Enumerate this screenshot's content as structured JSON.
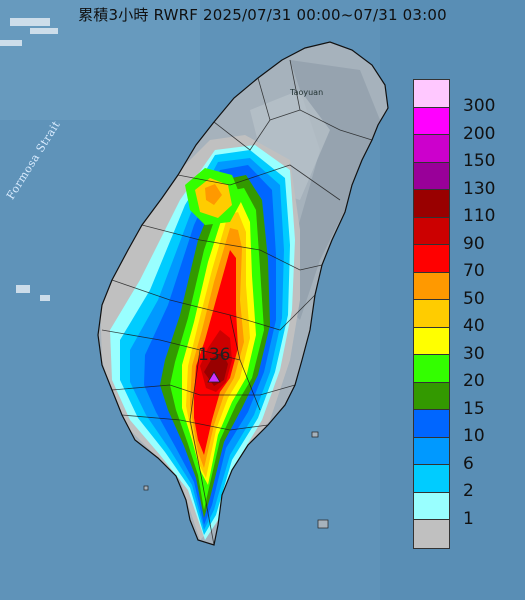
{
  "title": "累積3小時 RWRF 2025/07/31 00:00~07/31 03:00",
  "peak_value": "136",
  "map_labels": {
    "strait": "Formosa Strait",
    "city": "Taoyuan"
  },
  "legend": {
    "levels": [
      {
        "label": "300",
        "color": "#ffc8ff"
      },
      {
        "label": "200",
        "color": "#ff00ff"
      },
      {
        "label": "150",
        "color": "#cc00cc"
      },
      {
        "label": "130",
        "color": "#990099"
      },
      {
        "label": "110",
        "color": "#990000"
      },
      {
        "label": "90",
        "color": "#cc0000"
      },
      {
        "label": "70",
        "color": "#ff0000"
      },
      {
        "label": "50",
        "color": "#ff9900"
      },
      {
        "label": "40",
        "color": "#ffcc00"
      },
      {
        "label": "30",
        "color": "#ffff00"
      },
      {
        "label": "20",
        "color": "#33ff00"
      },
      {
        "label": "15",
        "color": "#339900"
      },
      {
        "label": "10",
        "color": "#0066ff"
      },
      {
        "label": "6",
        "color": "#0099ff"
      },
      {
        "label": "2",
        "color": "#00ccff"
      },
      {
        "label": "1",
        "color": "#99ffff"
      },
      {
        "label": "",
        "color": "#c0c0c0"
      }
    ]
  },
  "colors": {
    "sea": "#5f93b9",
    "land": "#9aa8b3",
    "peak_marker": "#cc33ff"
  }
}
